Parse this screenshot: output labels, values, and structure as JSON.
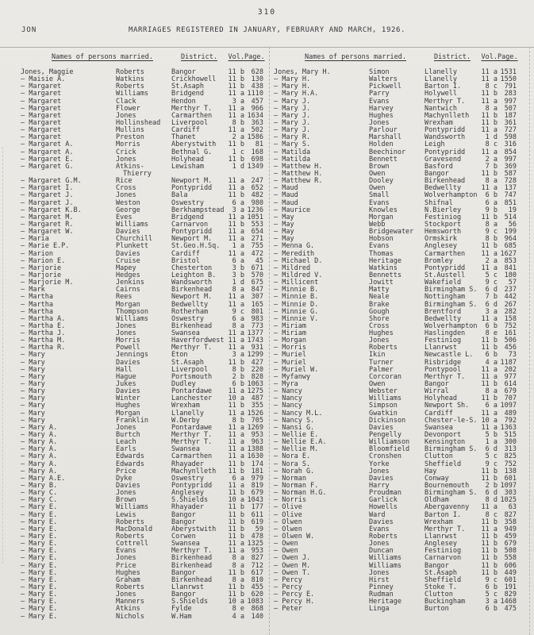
{
  "page": {
    "number": "310",
    "corner_label": "JON",
    "title": "MARRIAGES REGISTERED IN JANUARY, FEBRUARY AND MARCH, 1926."
  },
  "colors": {
    "ink": "#37363c",
    "paper": "#e9e7e2",
    "rule": "#9a978f"
  },
  "table": {
    "headers": {
      "names": "Names of persons married.",
      "district": "District.",
      "vol": "Vol.",
      "page": "Page."
    },
    "left_rows": [
      [
        "Jones, Maggie",
        "Roberts",
        "Bangor",
        "11 b",
        "628"
      ],
      [
        "— Maisie A.",
        "Watkins",
        "Crickhowell",
        "11 b",
        "130"
      ],
      [
        "— Margaret",
        "Roberts",
        "St.Asaph",
        "11 b",
        "438"
      ],
      [
        "— Margaret",
        "Williams",
        "Bridgend",
        "11 a",
        "1110"
      ],
      [
        "— Margaret",
        "Clack",
        "Hendon",
        "3 a",
        "457"
      ],
      [
        "— Margaret",
        "Flower",
        "Merthyr T.",
        "11 a",
        "966"
      ],
      [
        "— Margaret",
        "Jones",
        "Carmarthen",
        "11 a",
        "1634"
      ],
      [
        "— Margaret",
        "Hollinshead",
        "Liverpool",
        "8 b",
        "363"
      ],
      [
        "— Margaret",
        "Mullins",
        "Cardiff",
        "11 a",
        "502"
      ],
      [
        "— Margaret",
        "Preston",
        "Thanet",
        "2 a",
        "1586"
      ],
      [
        "— Margaret A.",
        "Morris",
        "Aberystwith",
        "11 b",
        "81"
      ],
      [
        "— Margaret A.",
        "Crick",
        "Bethnal G.",
        "1 c",
        "168"
      ],
      [
        "— Margaret E.",
        "Jones",
        "Holyhead",
        "11 b",
        "698"
      ],
      [
        "— Margaret G.",
        "Atkins-",
        "Lewisham",
        "1 d",
        "1349"
      ],
      [
        "",
        "Thierry",
        "",
        "",
        "",
        "cont"
      ],
      [
        "— Margaret G.M.",
        "Rice",
        "Newport M.",
        "11 a",
        "247"
      ],
      [
        "— Margaret I.",
        "Cross",
        "Pontypridd",
        "11 a",
        "652"
      ],
      [
        "— Margaret J.",
        "Jones",
        "Bala",
        "11 b",
        "482"
      ],
      [
        "— Margaret J.",
        "Weston",
        "Oswestry",
        "6 a",
        "980"
      ],
      [
        "— Margaret K.B.",
        "George",
        "Berkhampstead",
        "3 a",
        "1236"
      ],
      [
        "— Margaret M.",
        "Eves",
        "Bridgend",
        "11 a",
        "1051"
      ],
      [
        "— Margaret R.",
        "Williams",
        "Carnarvon",
        "11 b",
        "553"
      ],
      [
        "— Margaret W.",
        "Davies",
        "Pontypridd",
        "11 a",
        "654"
      ],
      [
        "— Maria",
        "Churchill",
        "Newport M.",
        "11 a",
        "271"
      ],
      [
        "— Marie E.P.",
        "Plunkett",
        "St.Geo.H.Sq.",
        "1 a",
        "755"
      ],
      [
        "— Marion",
        "Davies",
        "Cardiff",
        "11 a",
        "472"
      ],
      [
        "— Marion E.",
        "Cruise",
        "Bristol",
        "6 a",
        "45"
      ],
      [
        "— Marjorie",
        "Mapey",
        "Chesterton",
        "3 b",
        "671"
      ],
      [
        "— Marjorie",
        "Hedges",
        "Leighton B.",
        "3 b",
        "570"
      ],
      [
        "— Marjorie M.",
        "Jenkins",
        "Wandsworth",
        "1 d",
        "675"
      ],
      [
        "— Mark",
        "Cairns",
        "Birkenhead",
        "8 a",
        "847"
      ],
      [
        "— Martha",
        "Rees",
        "Newport M.",
        "11 a",
        "307"
      ],
      [
        "— Martha",
        "Morgan",
        "Bedwellty",
        "11 a",
        "165"
      ],
      [
        "— Martha",
        "Thompson",
        "Rotherham",
        "9 c",
        "801"
      ],
      [
        "— Martha A.",
        "Williams",
        "Oswestry",
        "6 a",
        "983"
      ],
      [
        "— Martha E.",
        "Jones",
        "Birkenhead",
        "8 a",
        "773"
      ],
      [
        "— Martha J.",
        "Jones",
        "Swansea",
        "11 a",
        "1377"
      ],
      [
        "— Martha M.",
        "Morris",
        "Haverfordwest",
        "11 a",
        "1743"
      ],
      [
        "— Martha R.",
        "Powell",
        "Merthyr T.",
        "11 a",
        "931"
      ],
      [
        "— Mary",
        "Jennings",
        "Eton",
        "3 a",
        "1299"
      ],
      [
        "— Mary",
        "Davies",
        "St.Asaph",
        "11 b",
        "427"
      ],
      [
        "— Mary",
        "Hall",
        "Liverpool",
        "8 b",
        "220"
      ],
      [
        "— Mary",
        "Hague",
        "Portsmouth",
        "2 b",
        "828"
      ],
      [
        "— Mary",
        "Jukes",
        "Dudley",
        "6 b",
        "1063"
      ],
      [
        "— Mary",
        "Davies",
        "Pontardawe",
        "11 a",
        "1275"
      ],
      [
        "— Mary",
        "Winter",
        "Lanchester",
        "10 a",
        "487"
      ],
      [
        "— Mary",
        "Hughes",
        "Wrexham",
        "11 b",
        "355"
      ],
      [
        "— Mary",
        "Morgan",
        "Llanelly",
        "11 a",
        "1526"
      ],
      [
        "— Mary",
        "Franklin",
        "W.Derby",
        "8 b",
        "705"
      ],
      [
        "— Mary A.",
        "Jones",
        "Pontardawe",
        "11 a",
        "1269"
      ],
      [
        "— Mary A.",
        "Burtch",
        "Merthyr T.",
        "11 a",
        "953"
      ],
      [
        "— Mary A.",
        "Leach",
        "Merthyr T.",
        "11 a",
        "963"
      ],
      [
        "— Mary A.",
        "Earls",
        "Swansea",
        "11 a",
        "1388"
      ],
      [
        "— Mary A.",
        "Edwards",
        "Carmarthen",
        "11 a",
        "1630"
      ],
      [
        "— Mary A.",
        "Edwards",
        "Rhayader",
        "11 b",
        "174"
      ],
      [
        "— Mary A.",
        "Price",
        "Machynlleth",
        "11 b",
        "181"
      ],
      [
        "— Mary A.E.",
        "Dyke",
        "Oswestry",
        "6 a",
        "979"
      ],
      [
        "— Mary B.",
        "Davies",
        "Pontypridd",
        "11 a",
        "819"
      ],
      [
        "— Mary C.",
        "Jones",
        "Anglesey",
        "11 b",
        "679"
      ],
      [
        "— Mary C.",
        "Brown",
        "S.Shields",
        "10 a",
        "1043"
      ],
      [
        "— Mary E.",
        "Williams",
        "Rhayader",
        "11 b",
        "177"
      ],
      [
        "— Mary E.",
        "Lewis",
        "Bangor",
        "11 b",
        "611"
      ],
      [
        "— Mary E.",
        "Roberts",
        "Bangor",
        "11 b",
        "619"
      ],
      [
        "— Mary E.",
        "MacDonald",
        "Aberystwith",
        "11 b",
        "59"
      ],
      [
        "— Mary E.",
        "Roberts",
        "Corwen",
        "11 b",
        "478"
      ],
      [
        "— Mary E.",
        "Cottrell",
        "Swansea",
        "11 a",
        "1325"
      ],
      [
        "— Mary E.",
        "Evans",
        "Merthyr T.",
        "11 a",
        "953"
      ],
      [
        "— Mary E.",
        "Jones",
        "Birkenhead",
        "8 a",
        "827"
      ],
      [
        "— Mary E.",
        "Price",
        "Birkenhead",
        "8 a",
        "712"
      ],
      [
        "— Mary E.",
        "Hughes",
        "Bangor",
        "11 b",
        "617"
      ],
      [
        "— Mary E.",
        "Graham",
        "Birkenhead",
        "8 a",
        "810"
      ],
      [
        "— Mary E.",
        "Roberts",
        "Llanrwst",
        "11 b",
        "455"
      ],
      [
        "— Mary E.",
        "Jones",
        "Bangor",
        "11 b",
        "620"
      ],
      [
        "— Mary E.",
        "Manners",
        "S.Shields",
        "10 a",
        "1083"
      ],
      [
        "— Mary E.",
        "Atkins",
        "Fylde",
        "8 e",
        "868"
      ],
      [
        "— Mary E.",
        "Nichols",
        "W.Ham",
        "4 a",
        "140"
      ]
    ],
    "right_rows": [
      [
        "Jones, Mary H.",
        "Simon",
        "Llanelly",
        "11 a",
        "1531"
      ],
      [
        "— Mary H.",
        "Walters",
        "Llanelly",
        "11 a",
        "1550"
      ],
      [
        "— Mary H.",
        "Pickwell",
        "Barton I.",
        "8 c",
        "791"
      ],
      [
        "— Mary H.A.",
        "Parry",
        "Holywell",
        "11 b",
        "283"
      ],
      [
        "— Mary J.",
        "Evans",
        "Merthyr T.",
        "11 a",
        "997"
      ],
      [
        "— Mary J.",
        "Harvey",
        "Nantwich",
        "8 a",
        "507"
      ],
      [
        "— Mary J.",
        "Hughes",
        "Machynlleth",
        "11 b",
        "187"
      ],
      [
        "— Mary J.",
        "Jones",
        "Wrexham",
        "11 b",
        "361"
      ],
      [
        "— Mary J.",
        "Parlour",
        "Pontypridd",
        "11 a",
        "727"
      ],
      [
        "— Mary R.",
        "Marshall",
        "Wandsworth",
        "1 d",
        "598"
      ],
      [
        "— Mary S.",
        "Holden",
        "Leigh",
        "8 c",
        "316"
      ],
      [
        "— Matilda",
        "Beechinor",
        "Pontypridd",
        "11 a",
        "854"
      ],
      [
        "— Matilda",
        "Bennett",
        "Gravesend",
        "2 a",
        "997"
      ],
      [
        "— Matthew H.",
        "Brown",
        "Basford",
        "7 b",
        "369"
      ],
      [
        "— Matthew H.",
        "Owen",
        "Bangor",
        "11 b",
        "587"
      ],
      [
        "— Matthew R.",
        "Dooley",
        "Birkenhead",
        "8 a",
        "728"
      ],
      [
        "— Maud",
        "Owen",
        "Bedwellty",
        "11 a",
        "137"
      ],
      [
        "— Maud",
        "Small",
        "Wolverhampton",
        "6 b",
        "747"
      ],
      [
        "— Maud",
        "Evans",
        "Shifnal",
        "6 a",
        "851"
      ],
      [
        "— Maurice",
        "Knowles",
        "N.Bierley",
        "9 b",
        "19"
      ],
      [
        "— May",
        "Morgan",
        "Festiniog",
        "11 b",
        "514"
      ],
      [
        "— May",
        "Webb",
        "Stockport",
        "8 a",
        "56"
      ],
      [
        "— May",
        "Bridgewater",
        "Hemsworth",
        "9 c",
        "199"
      ],
      [
        "— May",
        "Hobson",
        "Ormskirk",
        "8 b",
        "964"
      ],
      [
        "— Menna G.",
        "Evans",
        "Anglesey",
        "11 b",
        "685"
      ],
      [
        "— Meredith",
        "Thomas",
        "Carmarthen",
        "11 a",
        "1627"
      ],
      [
        "— Michael D.",
        "Heritage",
        "Bromley",
        "2 a",
        "853"
      ],
      [
        "— Mildred",
        "Watkins",
        "Pontypridd",
        "11 a",
        "841"
      ],
      [
        "— Mildred V.",
        "Bennetts",
        "St.Austell",
        "5 c",
        "180"
      ],
      [
        "— Millicent",
        "Jowitt",
        "Wakefield",
        "9 c",
        "57"
      ],
      [
        "— Minnie B.",
        "Matty",
        "Birmingham S.",
        "6 d",
        "237"
      ],
      [
        "— Minnie B.",
        "Neale",
        "Nottingham",
        "7 b",
        "442"
      ],
      [
        "— Minnie D.",
        "Brake",
        "Birmingham S.",
        "6 d",
        "267"
      ],
      [
        "— Minnie G.",
        "Gough",
        "Brentford",
        "3 a",
        "282"
      ],
      [
        "— Minnie V.",
        "Shore",
        "Bedwellty",
        "11 a",
        "158"
      ],
      [
        "— Miriam",
        "Cross",
        "Wolverhampton",
        "6 b",
        "752"
      ],
      [
        "— Miriam",
        "Hughes",
        "Haslingden",
        "8 e",
        "161"
      ],
      [
        "— Morgan",
        "Jones",
        "Festiniog",
        "11 b",
        "506"
      ],
      [
        "— Morris",
        "Roberts",
        "Llanrwst",
        "11 b",
        "456"
      ],
      [
        "— Muriel",
        "Ikin",
        "Newcastle L.",
        "6 b",
        "73"
      ],
      [
        "— Muriel",
        "Turner",
        "Risbridge",
        "4 a",
        "1187"
      ],
      [
        "— Muriel W.",
        "Palmer",
        "Pontypool",
        "11 a",
        "202"
      ],
      [
        "— Myfanwy",
        "Corcoran",
        "Merthyr T.",
        "11 a",
        "977"
      ],
      [
        "— Myra",
        "Owen",
        "Bangor",
        "11 b",
        "614"
      ],
      [
        "— Nancy",
        "Webster",
        "Wirral",
        "8 a",
        "679"
      ],
      [
        "— Nancy",
        "Williams",
        "Holyhead",
        "11 b",
        "707"
      ],
      [
        "— Nancy",
        "Simpson",
        "Newport Sh.",
        "6 a",
        "1097"
      ],
      [
        "— Nancy M.L.",
        "Gwatkin",
        "Cardiff",
        "11 a",
        "489"
      ],
      [
        "— Nancy S.",
        "Dickinson",
        "Chester-le-S.",
        "10 a",
        "792"
      ],
      [
        "— Nansi G.",
        "Davies",
        "Swansea",
        "11 a",
        "1363"
      ],
      [
        "— Nellie E.",
        "Pengelly",
        "Devonport",
        "5 b",
        "515"
      ],
      [
        "— Nellie E.A.",
        "Williamson",
        "Kensington",
        "1 a",
        "300"
      ],
      [
        "— Nellie M.",
        "Bloomfield",
        "Birmingham S.",
        "6 d",
        "313"
      ],
      [
        "— Nora E.",
        "Cronshen",
        "Clutton",
        "5 c",
        "825"
      ],
      [
        "— Nora S.",
        "Yorke",
        "Sheffield",
        "9 c",
        "752"
      ],
      [
        "— Norah G.",
        "Jones",
        "Hay",
        "11 b",
        "138"
      ],
      [
        "— Norman",
        "Davies",
        "Conway",
        "11 b",
        "601"
      ],
      [
        "— Norman F.",
        "Harry",
        "Bournemouth",
        "2 b",
        "1097"
      ],
      [
        "— Norman H.G.",
        "Proudman",
        "Birmingham S.",
        "6 d",
        "303"
      ],
      [
        "— Norris",
        "Garlick",
        "Oldham",
        "8 d",
        "1025"
      ],
      [
        "— Olive",
        "Howells",
        "Abergavenny",
        "11 a",
        "63"
      ],
      [
        "— Olive",
        "Ward",
        "Barton I.",
        "8 c",
        "827"
      ],
      [
        "— Olwen",
        "Davies",
        "Wrexham",
        "11 b",
        "358"
      ],
      [
        "— Olwen",
        "Evans",
        "Merthyr T.",
        "11 a",
        "949"
      ],
      [
        "— Olwen W.",
        "Roberts",
        "Llanrwst",
        "11 b",
        "459"
      ],
      [
        "— Owen",
        "Jones",
        "Anglesey",
        "11 b",
        "679"
      ],
      [
        "— Owen",
        "Duncan",
        "Festiniog",
        "11 b",
        "508"
      ],
      [
        "— Owen J.",
        "Williams",
        "Carnarvon",
        "11 b",
        "558"
      ],
      [
        "— Owen M.",
        "Williams",
        "Bangor",
        "11 b",
        "606"
      ],
      [
        "— Owen T.",
        "Jones",
        "St.Asaph",
        "11 b",
        "449"
      ],
      [
        "— Percy",
        "Hirst",
        "Sheffield",
        "9 c",
        "601"
      ],
      [
        "— Percy",
        "Pinney",
        "Stoke T.",
        "6 b",
        "191"
      ],
      [
        "— Percy E.",
        "Rudman",
        "Clutton",
        "5 c",
        "829"
      ],
      [
        "— Percy H.",
        "Heritage",
        "Buckingham",
        "3 a",
        "1468"
      ],
      [
        "— Peter",
        "Linga",
        "Burton",
        "6 b",
        "475"
      ]
    ]
  }
}
